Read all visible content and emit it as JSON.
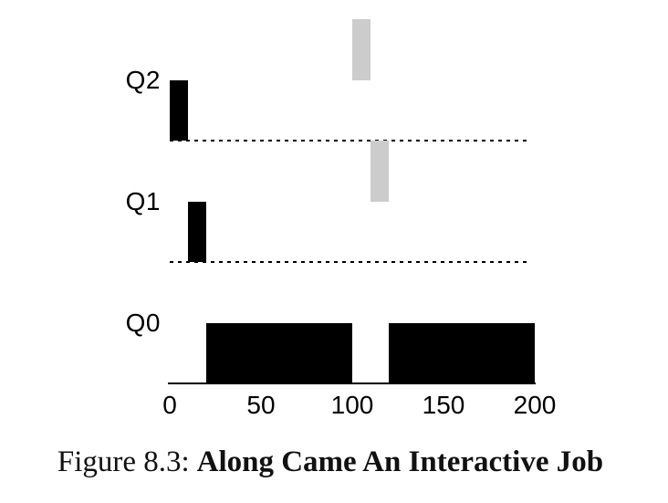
{
  "figure": {
    "caption_label": "Figure 8.3:",
    "caption_title": "Along Came An Interactive Job"
  },
  "colors": {
    "black_job": "#000000",
    "gray_job": "#cccccc",
    "axis": "#000000",
    "background": "#ffffff"
  },
  "chart_data": {
    "type": "bar",
    "variant": "mlfq-scheduling-timeline",
    "title": "",
    "xlabel": "",
    "ylabel": "",
    "xlim": [
      0,
      200
    ],
    "x_ticks": [
      0,
      50,
      100,
      150,
      200
    ],
    "grid": "dashed horizontal baseline under Q2 and Q1 rows, solid axis under Q0",
    "legend": "none",
    "queues": [
      "Q2",
      "Q1",
      "Q0"
    ],
    "series": [
      {
        "name": "black-job",
        "color": "#000000",
        "lane": "on-baseline",
        "segments": [
          {
            "queue": "Q2",
            "start": 0,
            "end": 10
          },
          {
            "queue": "Q1",
            "start": 10,
            "end": 20
          },
          {
            "queue": "Q0",
            "start": 20,
            "end": 100
          },
          {
            "queue": "Q0",
            "start": 120,
            "end": 200
          }
        ]
      },
      {
        "name": "gray-job",
        "color": "#cccccc",
        "lane": "above-baseline",
        "segments": [
          {
            "queue": "Q2",
            "start": 100,
            "end": 110
          },
          {
            "queue": "Q1",
            "start": 110,
            "end": 120
          }
        ]
      }
    ]
  }
}
